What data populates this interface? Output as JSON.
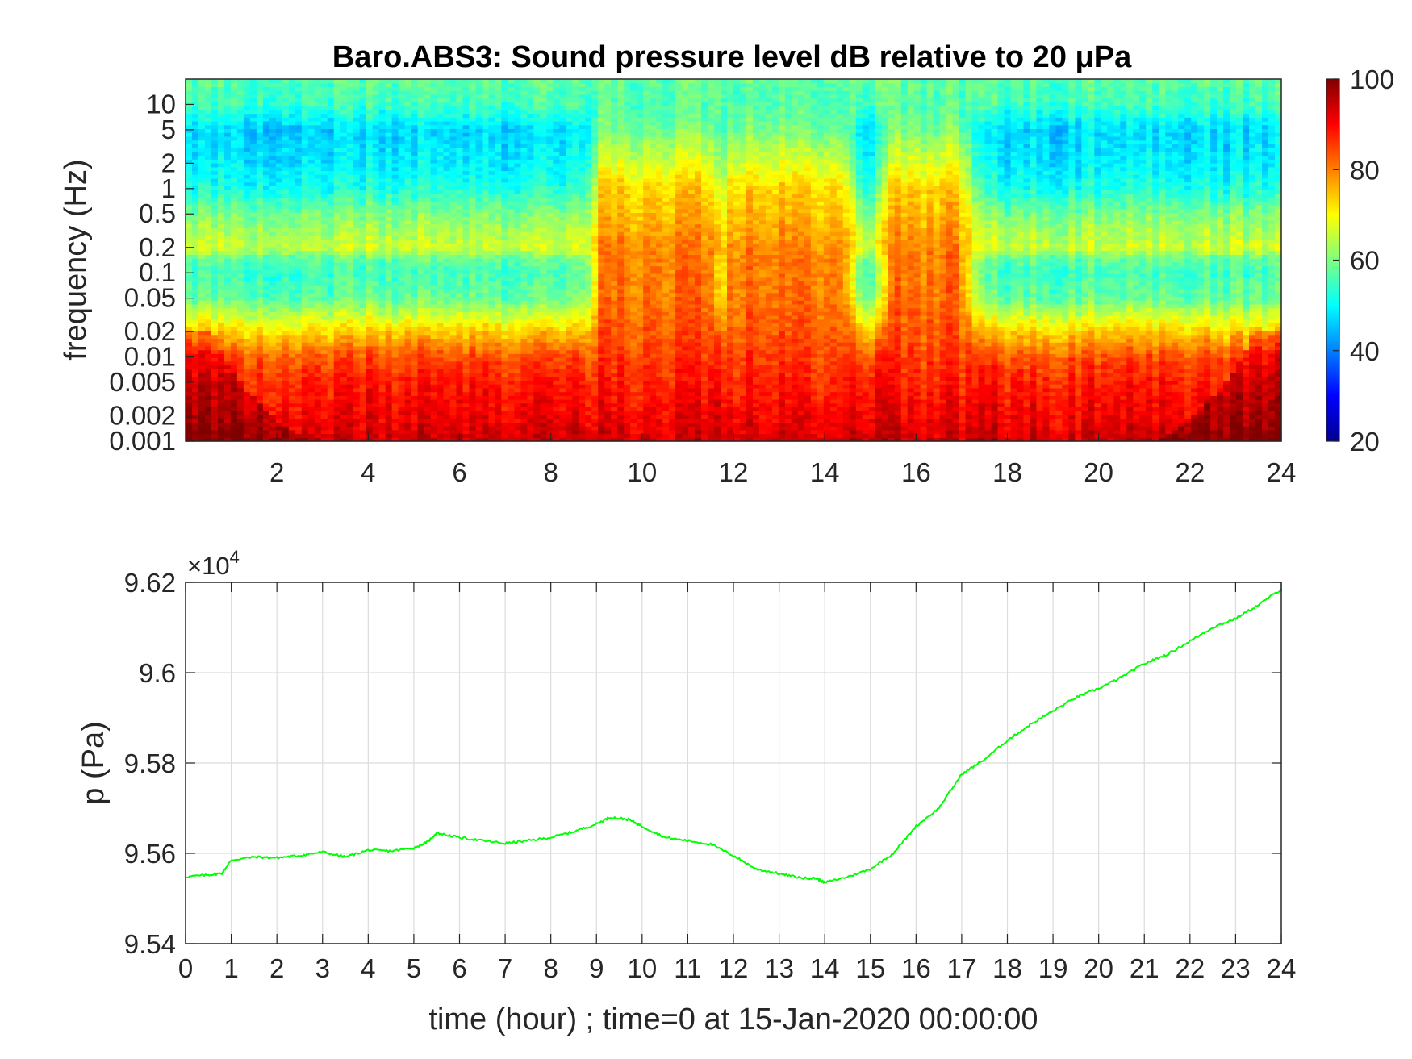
{
  "figure": {
    "title": "Baro.ABS3: Sound pressure level dB relative to 20 μPa"
  },
  "chart_data": [
    {
      "type": "heatmap",
      "title": "Baro.ABS3: Sound pressure level dB relative to 20 μPa",
      "xlabel": "",
      "ylabel": "frequency (Hz)",
      "xlim": [
        0,
        24
      ],
      "x_ticks": [
        2,
        4,
        6,
        8,
        10,
        12,
        14,
        16,
        18,
        20,
        22,
        24
      ],
      "y_scale": "log",
      "ylim": [
        0.001,
        20
      ],
      "y_ticks": [
        {
          "value": 0.001,
          "label": "0.001"
        },
        {
          "value": 0.002,
          "label": "0.002"
        },
        {
          "value": 0.005,
          "label": "0.005"
        },
        {
          "value": 0.01,
          "label": "0.01"
        },
        {
          "value": 0.02,
          "label": "0.02"
        },
        {
          "value": 0.05,
          "label": "0.05"
        },
        {
          "value": 0.1,
          "label": "0.1"
        },
        {
          "value": 0.2,
          "label": "0.2"
        },
        {
          "value": 0.5,
          "label": "0.5"
        },
        {
          "value": 1,
          "label": "1"
        },
        {
          "value": 2,
          "label": "2"
        },
        {
          "value": 5,
          "label": "5"
        },
        {
          "value": 10,
          "label": "10"
        }
      ],
      "colormap": "jet",
      "color_range": [
        20,
        100
      ],
      "colorbar_ticks": [
        20,
        40,
        60,
        80,
        100
      ],
      "colorbar_position": "right",
      "level_profile_db": {
        "frequency_hz": [
          0.001,
          0.002,
          0.005,
          0.01,
          0.02,
          0.05,
          0.1,
          0.15,
          0.2,
          0.5,
          1,
          2,
          5,
          10,
          20
        ],
        "quiet_hours": [
          94,
          91,
          88,
          84,
          74,
          58,
          55,
          58,
          66,
          60,
          52,
          49,
          47,
          55,
          57
        ],
        "active_hours": [
          94,
          91,
          88,
          86,
          84,
          82,
          81,
          81,
          80,
          76,
          74,
          68,
          60,
          57,
          58
        ]
      },
      "active_periods_hours": [
        [
          9.2,
          11.4
        ],
        [
          12.0,
          14.3
        ],
        [
          15.6,
          16.9
        ]
      ]
    },
    {
      "type": "line",
      "title": "",
      "xlabel": "time (hour) ; time=0 at 15-Jan-2020 00:00:00",
      "ylabel": "p (Pa)",
      "xlim": [
        0,
        24
      ],
      "ylim": [
        95400,
        96200
      ],
      "x_ticks": [
        0,
        1,
        2,
        3,
        4,
        5,
        6,
        7,
        8,
        9,
        10,
        11,
        12,
        13,
        14,
        15,
        16,
        17,
        18,
        19,
        20,
        21,
        22,
        23,
        24
      ],
      "y_ticks": [
        {
          "value": 95400,
          "label": "9.54"
        },
        {
          "value": 95600,
          "label": "9.56"
        },
        {
          "value": 95800,
          "label": "9.58"
        },
        {
          "value": 96000,
          "label": "9.6"
        },
        {
          "value": 96200,
          "label": "9.62"
        }
      ],
      "exponent_label": "×10",
      "exponent_power": "4",
      "grid": true,
      "line_color": "#00ff00",
      "series": [
        {
          "x": [
            0,
            0.5,
            0.8,
            1.0,
            1.5,
            2.0,
            2.5,
            3.0,
            3.5,
            4.0,
            4.5,
            5.0,
            5.3,
            5.5,
            6.0,
            6.5,
            7.0,
            7.5,
            8.0,
            8.5,
            9.0,
            9.3,
            9.7,
            10.0,
            10.5,
            11.0,
            11.5,
            12.0,
            12.5,
            13.0,
            13.5,
            13.8,
            14.0,
            14.5,
            15.0,
            15.5,
            16.0,
            16.5,
            17.0,
            17.5,
            18.0,
            18.5,
            19.0,
            19.5,
            20.0,
            20.5,
            21.0,
            21.5,
            22.0,
            22.5,
            23.0,
            23.5,
            24.0
          ],
          "y": [
            95548,
            95552,
            95556,
            95585,
            95592,
            95590,
            95595,
            95603,
            95592,
            95607,
            95605,
            95612,
            95625,
            95645,
            95635,
            95628,
            95622,
            95628,
            95635,
            95648,
            95665,
            95680,
            95675,
            95660,
            95635,
            95628,
            95620,
            95595,
            95565,
            95555,
            95545,
            95545,
            95535,
            95548,
            95565,
            95600,
            95660,
            95700,
            95775,
            95808,
            95850,
            95885,
            95915,
            95945,
            95965,
            95990,
            96020,
            96040,
            96070,
            96100,
            96120,
            96150,
            96185
          ]
        }
      ]
    }
  ]
}
